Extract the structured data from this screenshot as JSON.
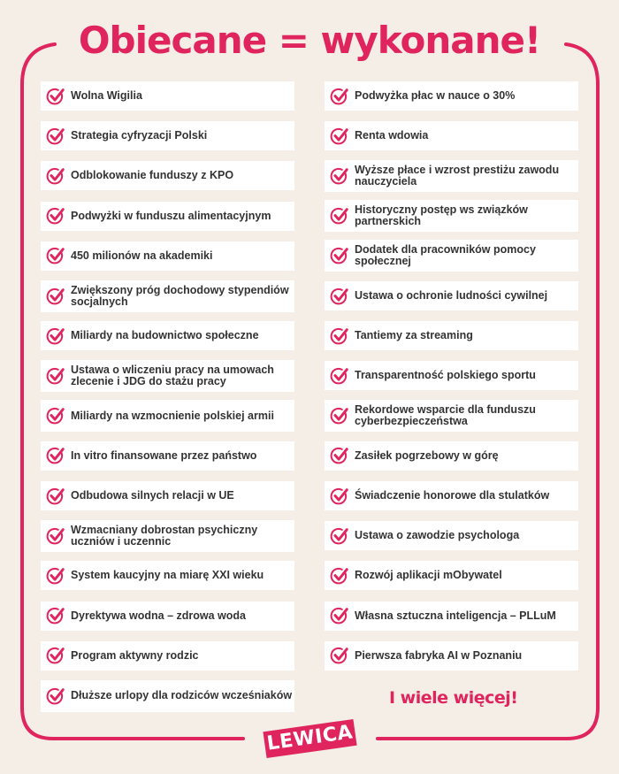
{
  "title": "Obiecane = wykonane!",
  "colors": {
    "accent": "#e0245e",
    "background": "#f4eee6",
    "box": "#ffffff"
  },
  "icon": "check-circle-icon",
  "left_items": [
    "Wolna Wigilia",
    "Strategia cyfryzacji Polski",
    "Odblokowanie funduszy z KPO",
    "Podwyżki w funduszu alimentacyjnym",
    "450 milionów na akademiki",
    "Zwiększony próg dochodowy stypendiów socjalnych",
    "Miliardy na budownictwo społeczne",
    "Ustawa o wliczeniu pracy na umowach zlecenie i JDG do stażu pracy",
    "Miliardy na wzmocnienie polskiej armii",
    "In vitro finansowane przez państwo",
    "Odbudowa silnych relacji w UE",
    "Wzmacniany dobrostan psychiczny uczniów i uczennic",
    "System kaucyjny na miarę XXI wieku",
    "Dyrektywa wodna – zdrowa woda",
    "Program aktywny rodzic",
    "Dłuższe urlopy dla rodziców wcześniaków"
  ],
  "right_items": [
    "Podwyżka płac w nauce o 30%",
    "Renta wdowia",
    "Wyższe płace i wzrost prestiżu zawodu nauczyciela",
    "Historyczny postęp ws związków partnerskich",
    "Dodatek dla pracowników pomocy społecznej",
    "Ustawa o ochronie ludności cywilnej",
    "Tantiemy za streaming",
    "Transparentność polskiego sportu",
    "Rekordowe wsparcie dla funduszu cyberbezpieczeństwa",
    "Zasiłek pogrzebowy w górę",
    "Świadczenie honorowe dla stulatków",
    "Ustawa o zawodzie psychologa",
    "Rozwój aplikacji mObywatel",
    "Własna sztuczna inteligencja – PLLuM",
    "Pierwsza fabryka AI w Poznaniu"
  ],
  "more": "I wiele więcej!",
  "logo": "LEWICA"
}
